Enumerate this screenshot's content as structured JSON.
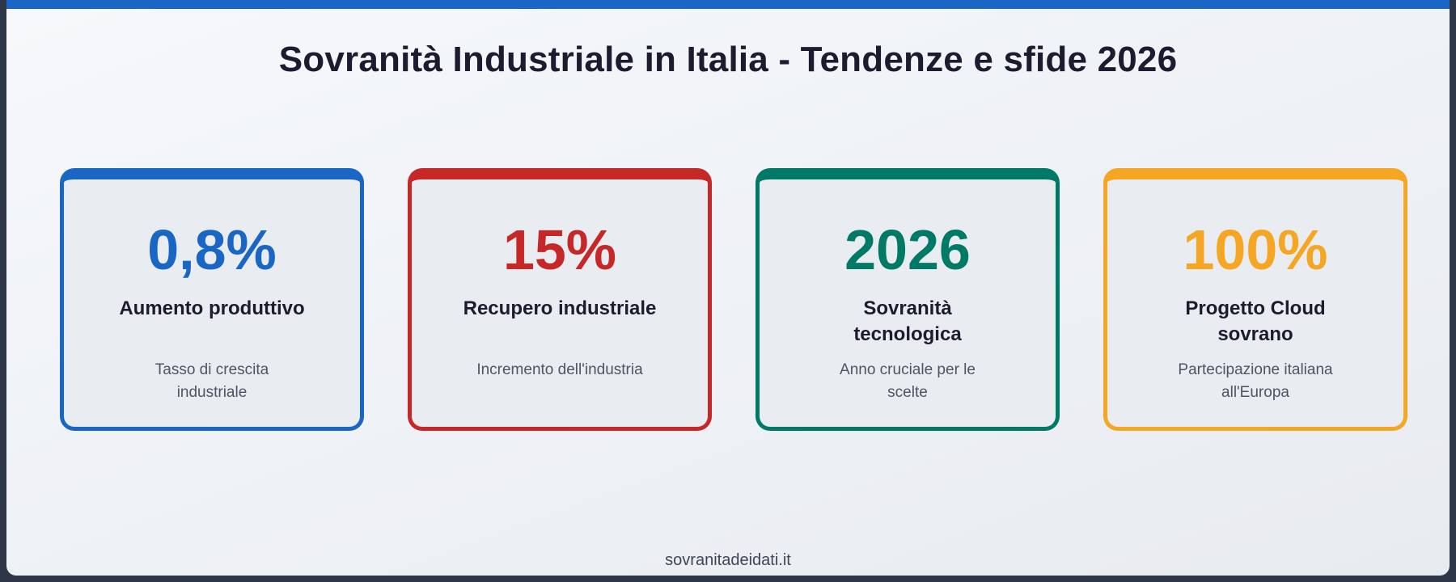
{
  "title": "Sovranità Industriale in Italia - Tendenze e sfide 2026",
  "cards": [
    {
      "value": "0,8%",
      "label": "Aumento produttivo",
      "description": "Tasso di crescita industriale",
      "color": "#1a66c4"
    },
    {
      "value": "15%",
      "label": "Recupero industriale",
      "description": "Incremento dell'industria",
      "color": "#c62828"
    },
    {
      "value": "2026",
      "label": "Sovranità tecnologica",
      "description": "Anno cruciale per le scelte",
      "color": "#007a66"
    },
    {
      "value": "100%",
      "label": "Progetto Cloud sovrano",
      "description": "Partecipazione italiana all'Europa",
      "color": "#f5a623"
    }
  ],
  "footer": "sovranitadeidati.it",
  "colors": {
    "accent_bar": "#1a66c4",
    "title_text": "#1c1b30",
    "body_text": "#4d5563",
    "frame": "#2d3748"
  }
}
